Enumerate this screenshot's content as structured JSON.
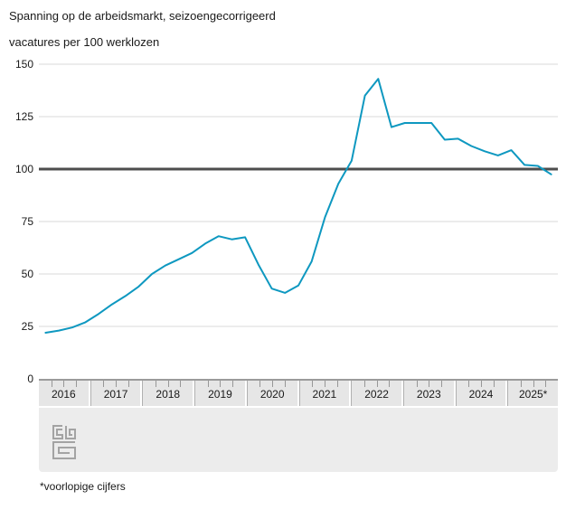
{
  "header": {
    "title": "Spanning op de arbeidsmarkt, seizoengecorrigeerd",
    "subtitle": "vacatures per 100 werklozen"
  },
  "footnote": "*voorlopige cijfers",
  "logo_name": "cbs-logo",
  "colors": {
    "line": "#0e98c0",
    "grid": "#d9d9d9",
    "reference_line": "#4d4d4d",
    "band_bg": "#e6e6e6",
    "band_border": "#9b9b9b",
    "footer_bg": "#ececec",
    "logo": "#a3a3a3",
    "text": "#191919"
  },
  "chart_data": {
    "type": "line",
    "title": "Spanning op de arbeidsmarkt, seizoengecorrigeerd",
    "ylabel": "vacatures per 100 werklozen",
    "xlabel": "",
    "grid": true,
    "legend": false,
    "ylim": [
      0,
      150
    ],
    "yticks": [
      150,
      125,
      100,
      75,
      50,
      25,
      0
    ],
    "reference_line": 100,
    "x_year_labels": [
      "2016",
      "2017",
      "2018",
      "2019",
      "2020",
      "2021",
      "2022",
      "2023",
      "2024",
      "2025*"
    ],
    "quarter_ticks_per_year": 4,
    "x": [
      "2016 K1",
      "2016 K2",
      "2016 K3",
      "2016 K4",
      "2017 K1",
      "2017 K2",
      "2017 K3",
      "2017 K4",
      "2018 K1",
      "2018 K2",
      "2018 K3",
      "2018 K4",
      "2019 K1",
      "2019 K2",
      "2019 K3",
      "2019 K4",
      "2020 K1",
      "2020 K2",
      "2020 K3",
      "2020 K4",
      "2021 K1",
      "2021 K2",
      "2021 K3",
      "2021 K4",
      "2022 K1",
      "2022 K2",
      "2022 K3",
      "2022 K4",
      "2023 K1",
      "2023 K2",
      "2023 K3",
      "2023 K4",
      "2024 K1",
      "2024 K2",
      "2024 K3",
      "2024 K4",
      "2025 K1",
      "2025 K2",
      "2025 K3"
    ],
    "values": [
      22,
      23,
      24.5,
      27,
      31,
      35.5,
      39.5,
      44,
      50,
      54,
      57,
      60,
      64.5,
      68,
      66.5,
      67.5,
      54.5,
      43,
      41,
      44.5,
      56,
      77,
      93,
      104,
      135,
      143,
      120,
      122,
      122,
      122,
      114,
      114.5,
      111,
      108.5,
      106.5,
      109,
      102,
      101.5,
      97.5
    ],
    "series_name": "vacatures per 100 werklozen, seizoengecorrigeerd",
    "footnote": "*voorlopige cijfers"
  }
}
